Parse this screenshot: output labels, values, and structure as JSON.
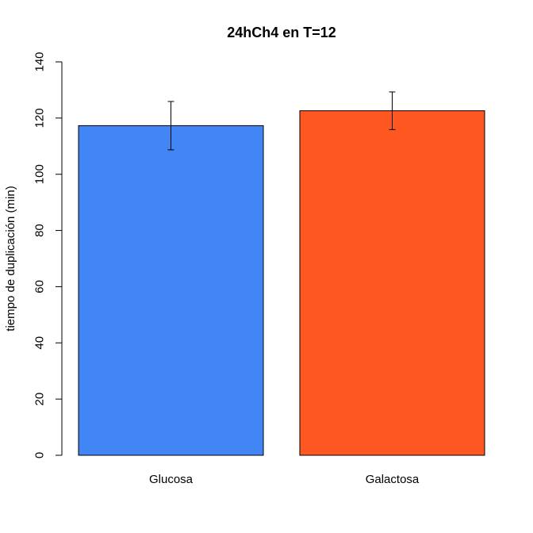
{
  "chart_data": {
    "type": "bar",
    "title": "24hCh4 en T=12",
    "xlabel": "",
    "ylabel": "tiempo de duplicación (min)",
    "categories": [
      "Glucosa",
      "Galactosa"
    ],
    "values": [
      117.3,
      122.6
    ],
    "error_low": [
      108.7,
      115.9
    ],
    "error_high": [
      125.9,
      129.3
    ],
    "colors": [
      "#4285F4",
      "#FF5722"
    ],
    "ylim": [
      0,
      140
    ],
    "yticks": [
      "0",
      "20",
      "40",
      "60",
      "80",
      "100",
      "120",
      "140"
    ],
    "grid": false,
    "legend": "none"
  }
}
